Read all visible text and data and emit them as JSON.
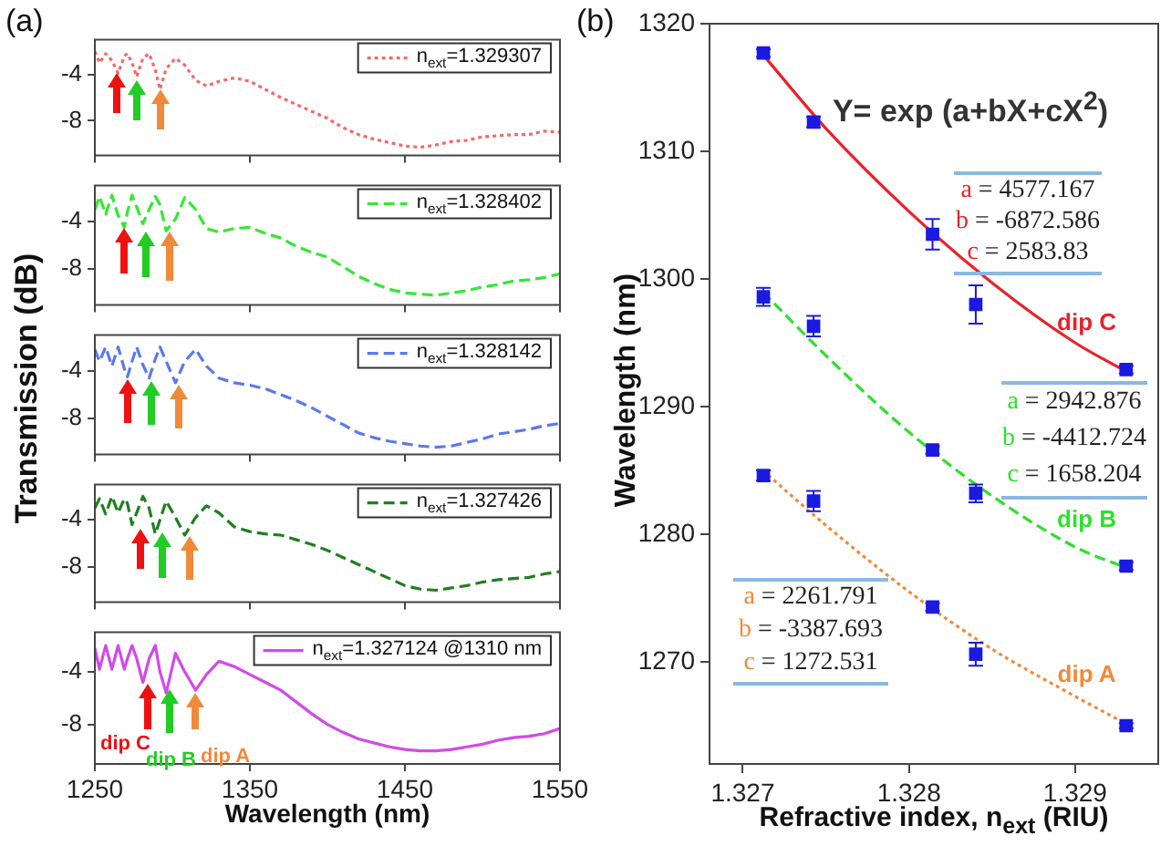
{
  "chart_data": [
    {
      "type": "line",
      "title": "(a)",
      "x": [
        1250,
        1253,
        1257,
        1261,
        1265,
        1269,
        1271,
        1274,
        1277,
        1281,
        1285,
        1289,
        1292,
        1296,
        1302,
        1308,
        1315,
        1322,
        1330,
        1340,
        1350,
        1360,
        1370,
        1380,
        1390,
        1400,
        1410,
        1420,
        1430,
        1440,
        1450,
        1460,
        1470,
        1480,
        1490,
        1500,
        1510,
        1520,
        1530,
        1540,
        1550
      ],
      "xlim": [
        1250,
        1550
      ],
      "xticks": [
        1250,
        1350,
        1450,
        1550
      ],
      "ylim": [
        -11,
        -1
      ],
      "yticks": [
        -4,
        -8
      ],
      "tick_labels": "y",
      "legend": "top right",
      "series": [
        {
          "name": "n$_{ext}$=1.329307",
          "color": "#f46a6a",
          "line_style": "dotted",
          "values": [
            -2.0,
            -3.0,
            -2.2,
            -2.8,
            -3.9,
            -2.4,
            -2.2,
            -3.0,
            -4.2,
            -2.6,
            -2.2,
            -3.6,
            -5.3,
            -3.5,
            -2.6,
            -3.2,
            -4.5,
            -5.0,
            -4.6,
            -4.3,
            -4.6,
            -5.3,
            -6.0,
            -6.6,
            -7.2,
            -7.8,
            -8.6,
            -9.2,
            -9.6,
            -9.9,
            -10.2,
            -10.3,
            -10.1,
            -9.8,
            -9.7,
            -9.4,
            -9.3,
            -9.2,
            -9.2,
            -8.9,
            -9.0
          ]
        }
      ]
    },
    {
      "type": "line",
      "x": [
        1250,
        1253,
        1257,
        1261,
        1265,
        1269,
        1271,
        1274,
        1277,
        1281,
        1285,
        1289,
        1292,
        1296,
        1302,
        1308,
        1315,
        1322,
        1330,
        1340,
        1350,
        1360,
        1370,
        1380,
        1390,
        1400,
        1410,
        1420,
        1430,
        1440,
        1450,
        1460,
        1470,
        1480,
        1490,
        1500,
        1510,
        1520,
        1530,
        1540,
        1550
      ],
      "xlim": [
        1250,
        1550
      ],
      "xticks": [
        1250,
        1350,
        1450,
        1550
      ],
      "ylim": [
        -11,
        -1
      ],
      "yticks": [
        -4,
        -8
      ],
      "tick_labels": "y",
      "legend": "top right",
      "series": [
        {
          "name": "n$_{ext}$=1.328402",
          "color": "#33e833",
          "line_style": "dashed",
          "values": [
            -3.0,
            -1.9,
            -3.4,
            -1.8,
            -3.5,
            -4.5,
            -3.2,
            -1.8,
            -2.8,
            -4.2,
            -3.0,
            -1.9,
            -2.6,
            -4.8,
            -3.8,
            -2.0,
            -3.0,
            -4.6,
            -4.9,
            -4.6,
            -4.5,
            -5.0,
            -5.4,
            -6.1,
            -6.6,
            -7.0,
            -7.8,
            -8.6,
            -9.2,
            -9.7,
            -10.0,
            -10.1,
            -10.2,
            -10.0,
            -9.8,
            -9.5,
            -9.3,
            -9.0,
            -8.9,
            -8.7,
            -8.4
          ]
        }
      ]
    },
    {
      "type": "line",
      "ylabel": "Transmission (dB)",
      "x": [
        1250,
        1253,
        1257,
        1261,
        1265,
        1269,
        1271,
        1274,
        1277,
        1281,
        1285,
        1289,
        1292,
        1296,
        1302,
        1308,
        1315,
        1322,
        1330,
        1340,
        1350,
        1360,
        1370,
        1380,
        1390,
        1400,
        1410,
        1420,
        1430,
        1440,
        1450,
        1460,
        1470,
        1480,
        1490,
        1500,
        1510,
        1520,
        1530,
        1540,
        1550
      ],
      "xlim": [
        1250,
        1550
      ],
      "xticks": [
        1250,
        1350,
        1450,
        1550
      ],
      "ylim": [
        -11,
        -1
      ],
      "yticks": [
        -4,
        -8
      ],
      "tick_labels": "y",
      "legend": "top right",
      "series": [
        {
          "name": "n$_{ext}$=1.328142",
          "color": "#5b78ec",
          "line_style": "dashed",
          "values": [
            -2.2,
            -3.2,
            -2.0,
            -3.6,
            -2.0,
            -3.8,
            -4.5,
            -3.2,
            -2.0,
            -3.5,
            -4.6,
            -3.0,
            -2.0,
            -3.2,
            -5.0,
            -3.2,
            -2.2,
            -3.6,
            -4.6,
            -5.0,
            -5.2,
            -5.5,
            -6.0,
            -6.5,
            -7.1,
            -7.8,
            -8.5,
            -9.2,
            -9.6,
            -9.9,
            -10.1,
            -10.3,
            -10.4,
            -10.3,
            -10.0,
            -9.7,
            -9.3,
            -9.1,
            -8.9,
            -8.6,
            -8.4
          ]
        }
      ]
    },
    {
      "type": "line",
      "x": [
        1250,
        1253,
        1257,
        1261,
        1265,
        1269,
        1271,
        1274,
        1277,
        1281,
        1285,
        1289,
        1292,
        1296,
        1302,
        1308,
        1315,
        1322,
        1330,
        1340,
        1350,
        1360,
        1370,
        1380,
        1390,
        1400,
        1410,
        1420,
        1430,
        1440,
        1450,
        1460,
        1470,
        1480,
        1490,
        1500,
        1510,
        1520,
        1530,
        1540,
        1550
      ],
      "xlim": [
        1250,
        1550
      ],
      "xticks": [
        1250,
        1350,
        1450,
        1550
      ],
      "ylim": [
        -11,
        -1
      ],
      "yticks": [
        -4,
        -8
      ],
      "tick_labels": "y",
      "legend": "top right",
      "series": [
        {
          "name": "n$_{ext}$=1.327426",
          "color": "#1f7f1f",
          "line_style": "dashed",
          "values": [
            -3.0,
            -2.2,
            -3.5,
            -2.0,
            -3.4,
            -2.2,
            -2.6,
            -4.4,
            -3.4,
            -2.0,
            -3.0,
            -5.2,
            -4.0,
            -2.4,
            -3.8,
            -5.3,
            -3.8,
            -2.8,
            -3.4,
            -4.6,
            -5.0,
            -5.2,
            -5.3,
            -5.7,
            -6.1,
            -6.6,
            -7.2,
            -7.8,
            -8.4,
            -9.0,
            -9.6,
            -9.9,
            -10.0,
            -9.8,
            -9.6,
            -9.3,
            -9.1,
            -9.0,
            -8.9,
            -8.6,
            -8.4
          ]
        }
      ]
    },
    {
      "type": "line",
      "xlabel": "Wavelength (nm)",
      "x": [
        1250,
        1253,
        1257,
        1261,
        1265,
        1269,
        1271,
        1274,
        1277,
        1281,
        1285,
        1289,
        1292,
        1296,
        1302,
        1308,
        1315,
        1322,
        1330,
        1340,
        1350,
        1360,
        1370,
        1380,
        1390,
        1400,
        1410,
        1420,
        1430,
        1440,
        1450,
        1460,
        1470,
        1480,
        1490,
        1500,
        1510,
        1520,
        1530,
        1540,
        1550
      ],
      "xlim": [
        1250,
        1550
      ],
      "xticks": [
        1250,
        1350,
        1450,
        1550
      ],
      "ylim": [
        -11,
        -1
      ],
      "yticks": [
        -4,
        -8
      ],
      "legend": "top right",
      "annotations": [
        "dip C",
        "dip B",
        "dip A"
      ],
      "series": [
        {
          "name": "n$_{ext}$=1.327124 @1310 nm",
          "color": "#d24ae8",
          "line_style": "solid",
          "values": [
            -2.2,
            -3.8,
            -2.0,
            -3.8,
            -2.0,
            -3.8,
            -3.0,
            -2.0,
            -3.0,
            -4.8,
            -3.0,
            -2.0,
            -4.0,
            -5.6,
            -2.6,
            -4.0,
            -5.4,
            -4.2,
            -3.2,
            -3.6,
            -4.2,
            -4.8,
            -5.4,
            -6.3,
            -7.2,
            -8.0,
            -8.6,
            -9.1,
            -9.4,
            -9.7,
            -9.9,
            -10.0,
            -10.0,
            -9.9,
            -9.7,
            -9.5,
            -9.2,
            -9.0,
            -8.9,
            -8.7,
            -8.3
          ]
        }
      ]
    },
    {
      "type": "scatter",
      "title": "(b)",
      "xlabel": "Refractive index, n$_{ext}$ (RIU)",
      "ylabel": "Wavelength (nm)",
      "x": [
        1.327124,
        1.327426,
        1.328142,
        1.328402,
        1.329307
      ],
      "xlim": [
        1.3268,
        1.3295
      ],
      "xticks": [
        1.327,
        1.328,
        1.329
      ],
      "ylim": [
        1262,
        1320
      ],
      "yticks": [
        1270,
        1280,
        1290,
        1300,
        1310,
        1320
      ],
      "annotations": [
        "Y= exp (a+bX+cX$^{2}$)",
        "a = 4577.167",
        "b = -6872.586",
        "c = 2583.83",
        "a = 2942.876",
        "b = -4412.724",
        "c = 1658.204",
        "a = 2261.791",
        "b = -3387.693",
        "c = 1272.531"
      ],
      "series": [
        {
          "type": "scatter",
          "color": "#1a1ae0",
          "marker": "square",
          "values": [
            1317.7,
            1312.3,
            1303.5,
            1298.0,
            1292.9
          ],
          "errors": [
            0.3,
            0.4,
            1.2,
            1.5,
            0.3
          ]
        },
        {
          "type": "scatter",
          "color": "#1a1ae0",
          "marker": "square",
          "values": [
            1298.6,
            1296.3,
            1286.6,
            1283.2,
            1277.5
          ],
          "errors": [
            0.7,
            0.8,
            0.3,
            0.7,
            0.3
          ]
        },
        {
          "type": "scatter",
          "color": "#1a1ae0",
          "marker": "square",
          "values": [
            1284.6,
            1282.6,
            1274.3,
            1270.6,
            1265.0
          ],
          "errors": [
            0.4,
            0.8,
            0.3,
            0.9,
            0.2
          ]
        },
        {
          "type": "line",
          "name": "dip C",
          "color": "#e8222a",
          "line_style": "solid",
          "x": [
            1.32712,
            1.3275,
            1.328,
            1.3285,
            1.329,
            1.3293
          ],
          "values": [
            1317.6,
            1311.8,
            1305.3,
            1299.7,
            1295.0,
            1292.8
          ]
        },
        {
          "type": "line",
          "name": "dip B",
          "color": "#2ee02e",
          "line_style": "dashed",
          "x": [
            1.32712,
            1.3275,
            1.328,
            1.3285,
            1.329,
            1.3293
          ],
          "values": [
            1299.0,
            1294.0,
            1288.0,
            1283.0,
            1279.0,
            1277.4
          ]
        },
        {
          "type": "line",
          "name": "dip A",
          "color": "#f08a3a",
          "line_style": "dotted",
          "x": [
            1.32712,
            1.3275,
            1.328,
            1.3285,
            1.329,
            1.3293
          ],
          "values": [
            1285.0,
            1280.7,
            1275.5,
            1271.0,
            1267.3,
            1265.2
          ]
        }
      ]
    }
  ]
}
